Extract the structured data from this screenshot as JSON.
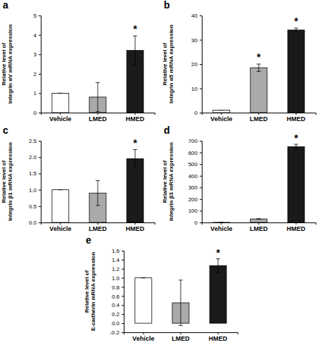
{
  "chart_data": [
    {
      "type": "bar",
      "title": "a",
      "y_label": "Relative level of\nIntegrin αV mRNA expression",
      "categories": [
        "Vehicle",
        "LMED",
        "HMED"
      ],
      "values": [
        1.0,
        0.8,
        3.2
      ],
      "errors": [
        0.0,
        0.75,
        0.75
      ],
      "colors": [
        "white",
        "#aaaaaa",
        "#1a1a1a"
      ],
      "annotations": [
        null,
        null,
        "*"
      ],
      "ylim": [
        0,
        5
      ],
      "yticks": [
        0,
        1,
        2,
        3,
        4,
        5
      ]
    },
    {
      "type": "bar",
      "title": "b",
      "y_label": "Relative level of\nIntegrin α5 mRNA expression",
      "categories": [
        "Vehicle",
        "LMED",
        "HMED"
      ],
      "values": [
        1.0,
        18.5,
        34.0
      ],
      "errors": [
        0.0,
        1.5,
        0.8
      ],
      "colors": [
        "white",
        "#aaaaaa",
        "#1a1a1a"
      ],
      "annotations": [
        null,
        "*",
        "*"
      ],
      "ylim": [
        0,
        40
      ],
      "yticks": [
        0,
        10,
        20,
        30,
        40
      ]
    },
    {
      "type": "bar",
      "title": "c",
      "y_label": "Relative level of\nIntegrin β1 mRNA expression",
      "categories": [
        "Vehicle",
        "LMED",
        "HMED"
      ],
      "values": [
        1.0,
        0.9,
        1.95
      ],
      "errors": [
        0.0,
        0.38,
        0.28
      ],
      "colors": [
        "white",
        "#aaaaaa",
        "#1a1a1a"
      ],
      "annotations": [
        null,
        null,
        "*"
      ],
      "ylim": [
        0,
        2.5
      ],
      "yticks": [
        {
          "value": 0,
          "label": "0.0"
        },
        0.5,
        {
          "value": 1,
          "label": "1.0"
        },
        1.5,
        {
          "value": 2,
          "label": "2.0"
        },
        2.5
      ]
    },
    {
      "type": "bar",
      "title": "d",
      "y_label": "Relative level of\nIntegrin β3 mRNA expression",
      "categories": [
        "Vehicle",
        "LMED",
        "HMED"
      ],
      "values": [
        1.0,
        30.0,
        650.0
      ],
      "errors": [
        0.0,
        0.0,
        20.0
      ],
      "colors": [
        "white",
        "#aaaaaa",
        "#1a1a1a"
      ],
      "annotations": [
        null,
        null,
        "*"
      ],
      "ylim": [
        0,
        700
      ],
      "yticks": [
        0,
        100,
        200,
        300,
        400,
        500,
        600,
        700
      ]
    },
    {
      "type": "bar",
      "title": "e",
      "y_label": "Relative level of\nE-cadherin mRNA expression",
      "categories": [
        "Vehicle",
        "LMED",
        "HMED"
      ],
      "values": [
        1.0,
        0.45,
        1.27
      ],
      "errors": [
        0.0,
        0.5,
        0.15
      ],
      "colors": [
        "white",
        "#aaaaaa",
        "#1a1a1a"
      ],
      "annotations": [
        null,
        null,
        "*"
      ],
      "ylim": [
        -0.2,
        1.6
      ],
      "yticks": [
        -0.2,
        {
          "value": 0,
          "label": "0.0"
        },
        0.2,
        0.4,
        0.6,
        0.8,
        {
          "value": 1,
          "label": "1.0"
        },
        1.2,
        1.4,
        1.6
      ]
    }
  ]
}
